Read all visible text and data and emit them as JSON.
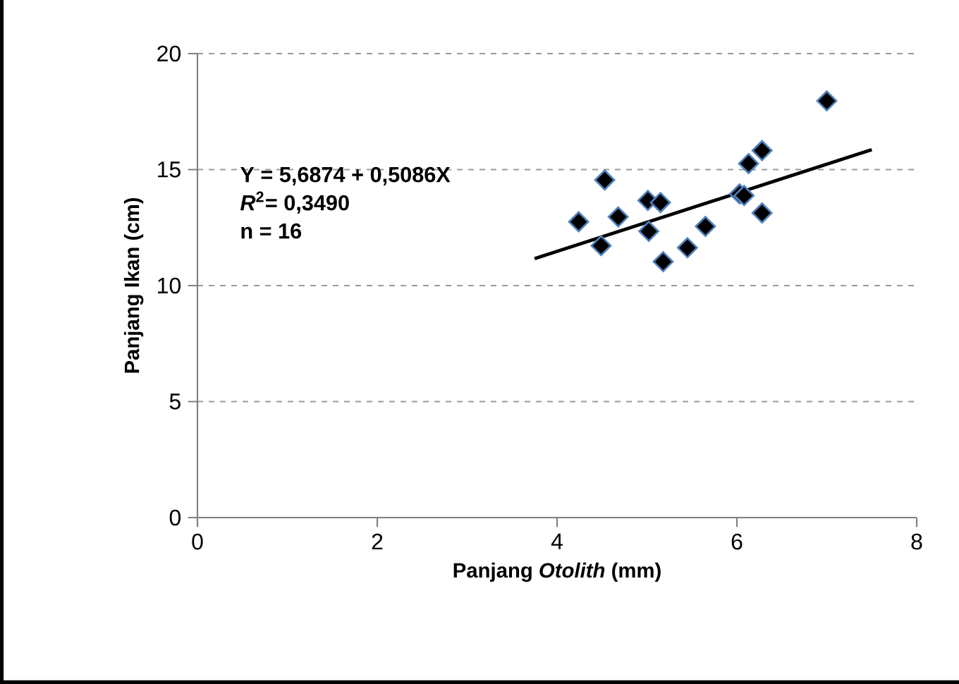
{
  "chart_data": {
    "type": "scatter",
    "xlabel": "Panjang *Otolith* (mm)",
    "ylabel": "Panjang Ikan (cm)",
    "xlim": [
      0,
      8
    ],
    "xticks": [
      0,
      2,
      4,
      6,
      8
    ],
    "ylim": [
      0,
      20
    ],
    "yticks": [
      0,
      5,
      10,
      15,
      20
    ],
    "grid": "y",
    "annotations": [
      "Y = 5,6874 + 0,5086X",
      "*R*$^{2}$= 0,3490",
      "n = 16"
    ],
    "series": [
      {
        "marker": "diamond",
        "color": "#000000",
        "x": [
          4.24,
          4.49,
          4.53,
          4.68,
          5.01,
          5.02,
          5.15,
          5.18,
          5.45,
          5.65,
          6.03,
          6.08,
          6.13,
          6.28,
          6.28,
          7.0
        ],
        "values": [
          12.75,
          11.72,
          14.55,
          12.96,
          13.67,
          12.34,
          13.58,
          11.03,
          11.63,
          12.55,
          13.95,
          13.88,
          15.26,
          15.82,
          13.13,
          17.96
        ]
      },
      {
        "type": "line",
        "color": "#000000",
        "x": [
          3.75,
          7.5
        ],
        "values": [
          11.16,
          15.86
        ]
      }
    ]
  }
}
